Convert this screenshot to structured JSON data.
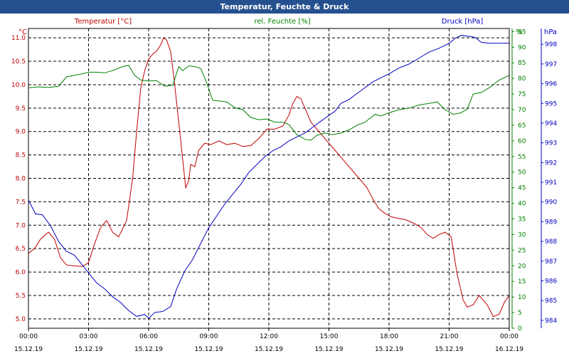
{
  "window": {
    "title": "Temperatur, Feuchte & Druck"
  },
  "chart_data": {
    "type": "line",
    "title": "Temperatur, Feuchte & Druck",
    "grid": true,
    "x_ticks": [
      {
        "time": "00:00",
        "date": "15.12.19"
      },
      {
        "time": "03:00",
        "date": "15.12.19"
      },
      {
        "time": "06:00",
        "date": "15.12.19"
      },
      {
        "time": "09:00",
        "date": "15.12.19"
      },
      {
        "time": "12:00",
        "date": "15.12.19"
      },
      {
        "time": "15:00",
        "date": "15.12.19"
      },
      {
        "time": "18:00",
        "date": "15.12.19"
      },
      {
        "time": "21:00",
        "date": "15.12.19"
      },
      {
        "time": "00:00",
        "date": "16.12.19"
      }
    ],
    "axes": {
      "temperature": {
        "series_label": "Temperatur [°C]",
        "unit": "°C",
        "color": "#c00000",
        "ylim": [
          4.8,
          11.2
        ],
        "ticks": [
          "5.0",
          "5.5",
          "6.0",
          "6.5",
          "7.0",
          "7.5",
          "8.0",
          "8.5",
          "9.0",
          "9.5",
          "10.0",
          "10.5",
          "11.0"
        ]
      },
      "humidity": {
        "series_label": "rel. Feuchte [%]",
        "unit": "%",
        "color": "#008000",
        "ylim": [
          0,
          96
        ],
        "ticks": [
          "0",
          "5",
          "10",
          "15",
          "20",
          "25",
          "30",
          "35",
          "40",
          "45",
          "50",
          "55",
          "60",
          "65",
          "70",
          "75",
          "80",
          "85",
          "90",
          "95"
        ]
      },
      "pressure": {
        "series_label": "Druck [hPa]",
        "unit": "hPa",
        "color": "#0000c0",
        "ylim": [
          983.6,
          998.8
        ],
        "ticks": [
          "984",
          "985",
          "986",
          "987",
          "988",
          "989",
          "990",
          "991",
          "992",
          "993",
          "994",
          "995",
          "996",
          "997",
          "998"
        ]
      }
    },
    "series": [
      {
        "name": "Temperatur [°C]",
        "axis": "temperature",
        "points": [
          [
            0.0,
            6.4
          ],
          [
            0.3,
            6.5
          ],
          [
            0.6,
            6.7
          ],
          [
            1.0,
            6.85
          ],
          [
            1.3,
            6.7
          ],
          [
            1.6,
            6.3
          ],
          [
            1.9,
            6.15
          ],
          [
            2.3,
            6.13
          ],
          [
            2.7,
            6.12
          ],
          [
            3.0,
            6.2
          ],
          [
            3.3,
            6.6
          ],
          [
            3.6,
            6.95
          ],
          [
            3.9,
            7.1
          ],
          [
            4.2,
            6.85
          ],
          [
            4.5,
            6.75
          ],
          [
            4.9,
            7.1
          ],
          [
            5.2,
            8.0
          ],
          [
            5.4,
            9.0
          ],
          [
            5.6,
            9.9
          ],
          [
            5.8,
            10.3
          ],
          [
            6.0,
            10.55
          ],
          [
            6.2,
            10.65
          ],
          [
            6.4,
            10.72
          ],
          [
            6.6,
            10.85
          ],
          [
            6.75,
            11.0
          ],
          [
            6.9,
            10.95
          ],
          [
            7.1,
            10.7
          ],
          [
            7.3,
            10.0
          ],
          [
            7.5,
            9.2
          ],
          [
            7.7,
            8.4
          ],
          [
            7.85,
            7.8
          ],
          [
            8.0,
            7.95
          ],
          [
            8.1,
            8.3
          ],
          [
            8.3,
            8.25
          ],
          [
            8.5,
            8.6
          ],
          [
            8.8,
            8.75
          ],
          [
            9.1,
            8.72
          ],
          [
            9.5,
            8.8
          ],
          [
            9.9,
            8.72
          ],
          [
            10.3,
            8.75
          ],
          [
            10.7,
            8.68
          ],
          [
            11.1,
            8.7
          ],
          [
            11.5,
            8.85
          ],
          [
            11.9,
            9.05
          ],
          [
            12.3,
            9.05
          ],
          [
            12.7,
            9.12
          ],
          [
            13.0,
            9.35
          ],
          [
            13.2,
            9.6
          ],
          [
            13.4,
            9.75
          ],
          [
            13.6,
            9.7
          ],
          [
            13.8,
            9.5
          ],
          [
            14.1,
            9.2
          ],
          [
            14.5,
            9.0
          ],
          [
            14.9,
            8.8
          ],
          [
            15.3,
            8.6
          ],
          [
            15.7,
            8.4
          ],
          [
            16.1,
            8.2
          ],
          [
            16.5,
            8.0
          ],
          [
            16.9,
            7.8
          ],
          [
            17.2,
            7.55
          ],
          [
            17.5,
            7.35
          ],
          [
            17.8,
            7.25
          ],
          [
            18.1,
            7.18
          ],
          [
            18.4,
            7.15
          ],
          [
            18.8,
            7.12
          ],
          [
            19.2,
            7.05
          ],
          [
            19.6,
            6.95
          ],
          [
            19.9,
            6.8
          ],
          [
            20.2,
            6.72
          ],
          [
            20.5,
            6.8
          ],
          [
            20.8,
            6.85
          ],
          [
            21.1,
            6.75
          ],
          [
            21.4,
            5.95
          ],
          [
            21.7,
            5.4
          ],
          [
            21.9,
            5.25
          ],
          [
            22.2,
            5.3
          ],
          [
            22.5,
            5.5
          ],
          [
            22.9,
            5.3
          ],
          [
            23.2,
            5.05
          ],
          [
            23.5,
            5.1
          ],
          [
            23.75,
            5.35
          ],
          [
            24.0,
            5.5
          ]
        ]
      },
      {
        "name": "rel. Feuchte [%]",
        "axis": "humidity",
        "points": [
          [
            0.0,
            77
          ],
          [
            0.5,
            77.3
          ],
          [
            1.0,
            77.1
          ],
          [
            1.5,
            77.5
          ],
          [
            1.9,
            80.5
          ],
          [
            2.3,
            81
          ],
          [
            2.7,
            81.5
          ],
          [
            3.0,
            82
          ],
          [
            3.4,
            82
          ],
          [
            3.8,
            81.8
          ],
          [
            4.2,
            82.5
          ],
          [
            4.7,
            83.8
          ],
          [
            5.0,
            84.2
          ],
          [
            5.3,
            81
          ],
          [
            5.6,
            79.5
          ],
          [
            6.0,
            79.2
          ],
          [
            6.4,
            79.3
          ],
          [
            6.8,
            77.5
          ],
          [
            7.2,
            77.8
          ],
          [
            7.5,
            83.8
          ],
          [
            7.7,
            82.5
          ],
          [
            8.0,
            84
          ],
          [
            8.3,
            83.8
          ],
          [
            8.6,
            83.2
          ],
          [
            8.9,
            78.5
          ],
          [
            9.2,
            73
          ],
          [
            9.5,
            72.8
          ],
          [
            9.9,
            72.5
          ],
          [
            10.3,
            70.6
          ],
          [
            10.7,
            70
          ],
          [
            11.1,
            67.5
          ],
          [
            11.5,
            66.8
          ],
          [
            11.9,
            67
          ],
          [
            12.3,
            66
          ],
          [
            12.7,
            66
          ],
          [
            13.0,
            65.2
          ],
          [
            13.4,
            62
          ],
          [
            13.8,
            60.5
          ],
          [
            14.1,
            60.2
          ],
          [
            14.4,
            61.8
          ],
          [
            14.8,
            62.5
          ],
          [
            15.2,
            62
          ],
          [
            15.6,
            62.5
          ],
          [
            16.0,
            63.5
          ],
          [
            16.4,
            65
          ],
          [
            16.8,
            66
          ],
          [
            17.3,
            68.5
          ],
          [
            17.6,
            68
          ],
          [
            18.0,
            69
          ],
          [
            18.5,
            70
          ],
          [
            19.0,
            70.5
          ],
          [
            19.5,
            71.5
          ],
          [
            20.0,
            72
          ],
          [
            20.4,
            72.5
          ],
          [
            20.8,
            70
          ],
          [
            21.2,
            68.5
          ],
          [
            21.6,
            69
          ],
          [
            21.9,
            70.2
          ],
          [
            22.2,
            75
          ],
          [
            22.6,
            75.5
          ],
          [
            23.0,
            77
          ],
          [
            23.5,
            79.5
          ],
          [
            24.0,
            81
          ]
        ]
      },
      {
        "name": "Druck [hPa]",
        "axis": "pressure",
        "points": [
          [
            0.0,
            990.1
          ],
          [
            0.35,
            989.4
          ],
          [
            0.7,
            989.35
          ],
          [
            1.1,
            988.8
          ],
          [
            1.5,
            988
          ],
          [
            1.9,
            987.5
          ],
          [
            2.3,
            987.3
          ],
          [
            2.7,
            986.8
          ],
          [
            3.0,
            986.4
          ],
          [
            3.4,
            985.9
          ],
          [
            3.8,
            985.6
          ],
          [
            4.2,
            985.2
          ],
          [
            4.6,
            984.9
          ],
          [
            5.0,
            984.5
          ],
          [
            5.4,
            984.2
          ],
          [
            5.8,
            984.3
          ],
          [
            6.0,
            984.1
          ],
          [
            6.3,
            984.4
          ],
          [
            6.7,
            984.45
          ],
          [
            7.1,
            984.7
          ],
          [
            7.4,
            985.6
          ],
          [
            7.8,
            986.5
          ],
          [
            8.2,
            987.1
          ],
          [
            8.6,
            987.9
          ],
          [
            9.0,
            988.7
          ],
          [
            9.4,
            989.3
          ],
          [
            9.8,
            989.9
          ],
          [
            10.2,
            990.4
          ],
          [
            10.6,
            990.9
          ],
          [
            11.0,
            991.5
          ],
          [
            11.4,
            991.9
          ],
          [
            11.8,
            992.3
          ],
          [
            12.2,
            992.6
          ],
          [
            12.6,
            992.8
          ],
          [
            13.0,
            993.1
          ],
          [
            13.4,
            993.3
          ],
          [
            13.8,
            993.5
          ],
          [
            14.2,
            993.8
          ],
          [
            14.6,
            994.1
          ],
          [
            15.0,
            994.4
          ],
          [
            15.3,
            994.6
          ],
          [
            15.6,
            995
          ],
          [
            16.0,
            995.2
          ],
          [
            16.4,
            995.5
          ],
          [
            16.8,
            995.8
          ],
          [
            17.2,
            996.1
          ],
          [
            17.6,
            996.3
          ],
          [
            18.0,
            996.5
          ],
          [
            18.5,
            996.8
          ],
          [
            19.0,
            997
          ],
          [
            19.5,
            997.3
          ],
          [
            20.0,
            997.6
          ],
          [
            20.5,
            997.8
          ],
          [
            21.0,
            998.05
          ],
          [
            21.3,
            998.3
          ],
          [
            21.6,
            998.45
          ],
          [
            22.0,
            998.4
          ],
          [
            22.3,
            998.35
          ],
          [
            22.6,
            998.1
          ],
          [
            23.0,
            998.05
          ],
          [
            23.5,
            998.05
          ],
          [
            24.0,
            998.05
          ]
        ]
      }
    ]
  }
}
